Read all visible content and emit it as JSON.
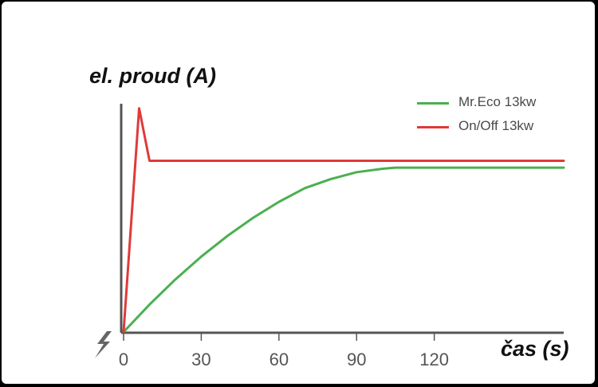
{
  "chart_data": {
    "type": "line",
    "ylabel": "el. proud (A)",
    "xlabel": "čas (s)",
    "xticks": [
      0,
      30,
      60,
      90,
      120
    ],
    "xlim": [
      0,
      170
    ],
    "ylim": [
      0,
      100
    ],
    "grid": false,
    "legend_position": "top-right",
    "series": [
      {
        "name": "Mr.Eco 13kw",
        "color": "#4caf50",
        "x": [
          0,
          10,
          20,
          30,
          40,
          50,
          60,
          70,
          80,
          90,
          100,
          105,
          110,
          120,
          130,
          140,
          150,
          160,
          170
        ],
        "y": [
          0,
          12,
          23,
          33,
          42,
          50,
          57,
          63,
          67,
          70,
          71.5,
          72,
          72,
          72,
          72,
          72,
          72,
          72,
          72
        ]
      },
      {
        "name": "On/Off 13kw",
        "color": "#e03a3a",
        "x": [
          0,
          6,
          10,
          170
        ],
        "y": [
          0,
          98,
          75,
          75
        ]
      }
    ]
  }
}
